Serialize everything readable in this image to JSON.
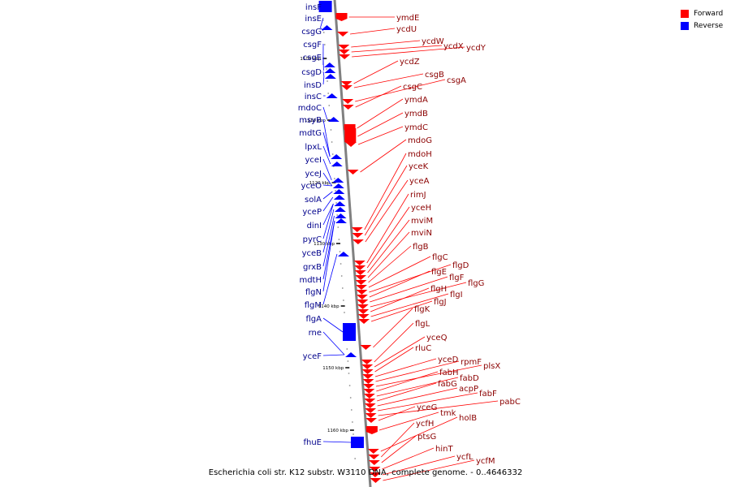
{
  "legend": {
    "forward_label": "Forward",
    "reverse_label": "Reverse",
    "forward_color": "#ff0000",
    "reverse_color": "#0000ff"
  },
  "caption": "Escherichia coli str. K12 substr. W3110 DNA, complete genome. - 0..4646332",
  "colors": {
    "label_left": "#00008b",
    "label_right": "#8b0000",
    "backbone": "#808080"
  },
  "scale_ticks": [
    "1100 kbp",
    "1110 kbp",
    "1120 kbp",
    "1130 kbp",
    "1140 kbp",
    "1150 kbp",
    "1160 kbp"
  ],
  "reverse_genes": [
    "insF",
    "insE",
    "csgG",
    "csgF",
    "csgE",
    "csgD",
    "insD",
    "insC",
    "mdoC",
    "msyB",
    "mdtG",
    "lpxL",
    "yceI",
    "yceJ",
    "yceO",
    "solA",
    "yceP",
    "dinI",
    "pyrC",
    "yceB",
    "grxB",
    "mdtH",
    "flgN",
    "flgM",
    "flgA",
    "rne",
    "yceF",
    "fhuE"
  ],
  "forward_genes": [
    "ymdE",
    "ycdU",
    "ycdW",
    "ycdX",
    "ycdY",
    "ycdZ",
    "csgB",
    "csgA",
    "csgC",
    "ymdA",
    "ymdB",
    "ymdC",
    "mdoG",
    "mdoH",
    "yceK",
    "yceA",
    "rimJ",
    "yceH",
    "mviM",
    "mviN",
    "flgB",
    "flgC",
    "flgD",
    "flgE",
    "flgF",
    "flgG",
    "flgH",
    "flgI",
    "flgJ",
    "flgK",
    "flgL",
    "yceQ",
    "rluC",
    "yceD",
    "rpmF",
    "plsX",
    "fabH",
    "fabD",
    "fabG",
    "acpP",
    "fabF",
    "pabC",
    "yceG",
    "tmk",
    "holB",
    "ycfH",
    "ptsG",
    "hinT",
    "ycfL",
    "ycfM"
  ]
}
